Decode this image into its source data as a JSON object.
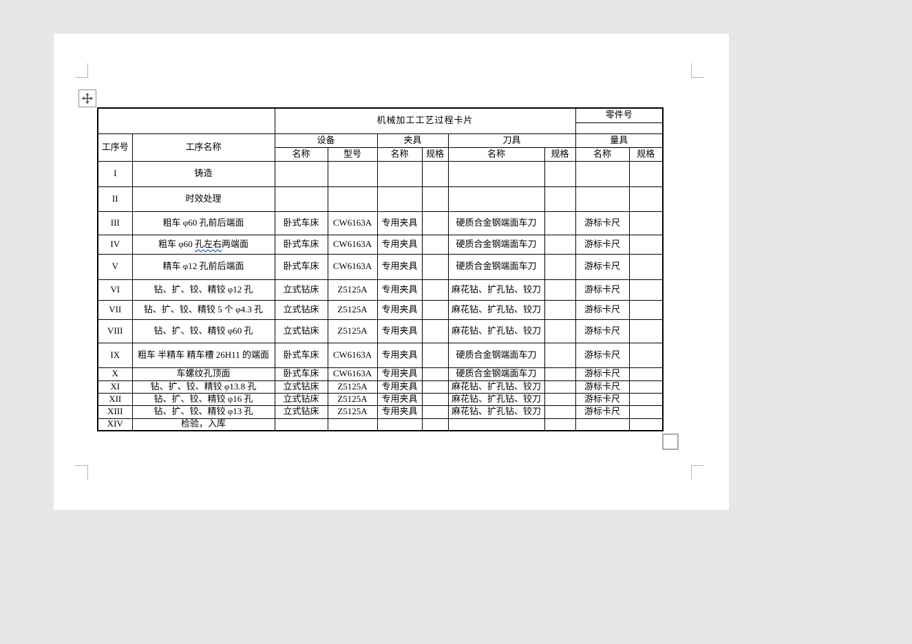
{
  "card": {
    "title": "机械加工工艺过程卡片",
    "part_no_label": "零件号",
    "part_no_value": ""
  },
  "table": {
    "headers": {
      "process_no": "工序号",
      "process_name": "工序名称",
      "equipment": "设备",
      "fixture": "夹具",
      "tool": "刀具",
      "gauge": "量具",
      "name": "名称",
      "model": "型号",
      "spec": "规格"
    },
    "rows": [
      {
        "no": "I",
        "name": "铸造",
        "eq_name": "",
        "eq_model": "",
        "fix_name": "",
        "fix_spec": "",
        "tool_name": "",
        "tool_spec": "",
        "gauge_name": "",
        "gauge_spec": ""
      },
      {
        "no": "II",
        "name": "时效处理",
        "eq_name": "",
        "eq_model": "",
        "fix_name": "",
        "fix_spec": "",
        "tool_name": "",
        "tool_spec": "",
        "gauge_name": "",
        "gauge_spec": ""
      },
      {
        "no": "III",
        "name": "粗车 φ60 孔前后端面",
        "eq_name": "卧式车床",
        "eq_model": "CW6163A",
        "fix_name": "专用夹具",
        "fix_spec": "",
        "tool_name": "硬质合金钢端面车刀",
        "tool_spec": "",
        "gauge_name": "游标卡尺",
        "gauge_spec": ""
      },
      {
        "no": "IV",
        "name": "粗车 φ60 孔左右两端面",
        "grammar_underline": "孔左右",
        "eq_name": "卧式车床",
        "eq_model": "CW6163A",
        "fix_name": "专用夹具",
        "fix_spec": "",
        "tool_name": "硬质合金钢端面车刀",
        "tool_spec": "",
        "gauge_name": "游标卡尺",
        "gauge_spec": ""
      },
      {
        "no": "V",
        "name": "精车 φ12 孔前后端面",
        "eq_name": "卧式车床",
        "eq_model": "CW6163A",
        "fix_name": "专用夹具",
        "fix_spec": "",
        "tool_name": "硬质合金钢端面车刀",
        "tool_spec": "",
        "gauge_name": "游标卡尺",
        "gauge_spec": ""
      },
      {
        "no": "VI",
        "name": "钻、扩、铰、精铰 φ12 孔",
        "eq_name": "立式钻床",
        "eq_model": "Z5125A",
        "fix_name": "专用夹具",
        "fix_spec": "",
        "tool_name": "麻花钻、扩孔钻、铰刀",
        "tool_spec": "",
        "gauge_name": "游标卡尺",
        "gauge_spec": ""
      },
      {
        "no": "VII",
        "name": "钻、扩、铰、精铰 5 个 φ4.3 孔",
        "eq_name": "立式钻床",
        "eq_model": "Z5125A",
        "fix_name": "专用夹具",
        "fix_spec": "",
        "tool_name": "麻花钻、扩孔钻、铰刀",
        "tool_spec": "",
        "gauge_name": "游标卡尺",
        "gauge_spec": ""
      },
      {
        "no": "VIII",
        "name": "钻、扩、铰、精铰 φ60 孔",
        "eq_name": "立式钻床",
        "eq_model": "Z5125A",
        "fix_name": "专用夹具",
        "fix_spec": "",
        "tool_name": "麻花钻、扩孔钻、铰刀",
        "tool_spec": "",
        "gauge_name": "游标卡尺",
        "gauge_spec": ""
      },
      {
        "no": "IX",
        "name": "粗车 半精车 精车槽 26H11 的端面",
        "eq_name": "卧式车床",
        "eq_model": "CW6163A",
        "fix_name": "专用夹具",
        "fix_spec": "",
        "tool_name": "硬质合金钢端面车刀",
        "tool_spec": "",
        "gauge_name": "游标卡尺",
        "gauge_spec": ""
      },
      {
        "no": "X",
        "name": "车螺纹孔顶面",
        "eq_name": "卧式车床",
        "eq_model": "CW6163A",
        "fix_name": "专用夹具",
        "fix_spec": "",
        "tool_name": "硬质合金钢端面车刀",
        "tool_spec": "",
        "gauge_name": "游标卡尺",
        "gauge_spec": ""
      },
      {
        "no": "XI",
        "name": "钻、扩、铰、精铰 φ13.8 孔",
        "eq_name": "立式钻床",
        "eq_model": "Z5125A",
        "fix_name": "专用夹具",
        "fix_spec": "",
        "tool_name": "麻花钻、扩孔钻、铰刀",
        "tool_spec": "",
        "gauge_name": "游标卡尺",
        "gauge_spec": ""
      },
      {
        "no": "XII",
        "name": "钻、扩、铰、精铰 φ16 孔",
        "eq_name": "立式钻床",
        "eq_model": "Z5125A",
        "fix_name": "专用夹具",
        "fix_spec": "",
        "tool_name": "麻花钻、扩孔钻、铰刀",
        "tool_spec": "",
        "gauge_name": "游标卡尺",
        "gauge_spec": ""
      },
      {
        "no": "XIII",
        "name": "钻、扩、铰、精铰 φ13 孔",
        "eq_name": "立式钻床",
        "eq_model": "Z5125A",
        "fix_name": "专用夹具",
        "fix_spec": "",
        "tool_name": "麻花钻、扩孔钻、铰刀",
        "tool_spec": "",
        "gauge_name": "游标卡尺",
        "gauge_spec": ""
      },
      {
        "no": "XIV",
        "name": "检验，入库",
        "eq_name": "",
        "eq_model": "",
        "fix_name": "",
        "fix_spec": "",
        "tool_name": "",
        "tool_spec": "",
        "gauge_name": "",
        "gauge_spec": ""
      }
    ]
  },
  "icons": {
    "move_handle": "four-way-move-arrow",
    "resize_handle": "table-resize-square"
  },
  "colors": {
    "grammar_underline": "#2f5fc4",
    "table_border": "#000000",
    "page_background": "#ffffff",
    "desktop_background": "#e7e7e7"
  }
}
